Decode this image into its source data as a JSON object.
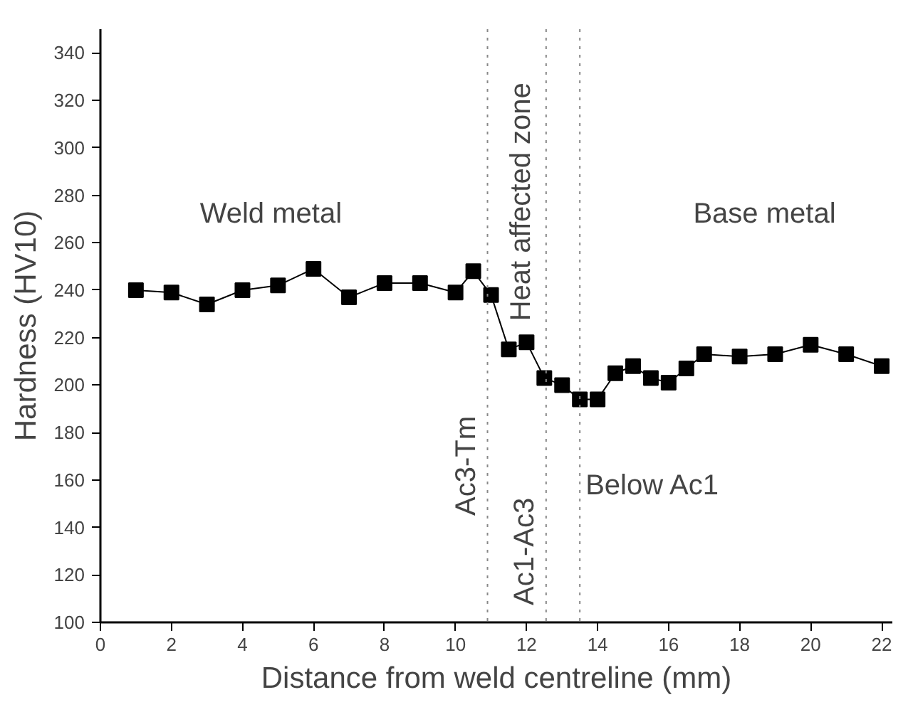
{
  "chart_data": {
    "type": "line",
    "xlabel": "Distance from weld centreline (mm)",
    "ylabel": "Hardness (HV10)",
    "x": [
      1,
      2,
      3,
      4,
      5,
      6,
      7,
      8,
      9,
      10,
      10.5,
      11,
      11.5,
      12,
      12.5,
      13,
      13.5,
      14,
      14.5,
      15,
      15.5,
      16,
      16.5,
      17,
      18,
      19,
      20,
      21,
      22
    ],
    "series": [
      {
        "color": "#000000",
        "values": [
          240,
          239,
          234,
          240,
          242,
          249,
          237,
          243,
          243,
          239,
          248,
          238,
          215,
          218,
          203,
          200,
          194,
          194,
          205,
          208,
          203,
          201,
          207,
          213,
          212,
          213,
          217,
          213,
          208
        ]
      }
    ],
    "marker": "square",
    "line_style": "solid",
    "grid": false,
    "xlim": [
      0,
      22.3
    ],
    "xticks": [
      0,
      2,
      4,
      6,
      8,
      10,
      12,
      14,
      16,
      18,
      20,
      22
    ],
    "ylim": [
      100,
      350
    ],
    "yticks": [
      100,
      120,
      140,
      160,
      180,
      200,
      220,
      240,
      260,
      280,
      300,
      320,
      340
    ],
    "ref_lines": [
      {
        "axis": "x",
        "value": 10.9,
        "label": "Ac3-Tm",
        "color": "#888888",
        "line_style": "dotted"
      },
      {
        "axis": "x",
        "value": 12.55,
        "label": "Ac1-Ac3",
        "color": "#888888",
        "line_style": "dotted"
      },
      {
        "axis": "x",
        "value": 13.5,
        "label": "Below Ac1",
        "color": "#888888",
        "line_style": "dotted"
      }
    ],
    "annotations": [
      "Weld metal",
      "Heat affected zone",
      "Base metal"
    ]
  }
}
